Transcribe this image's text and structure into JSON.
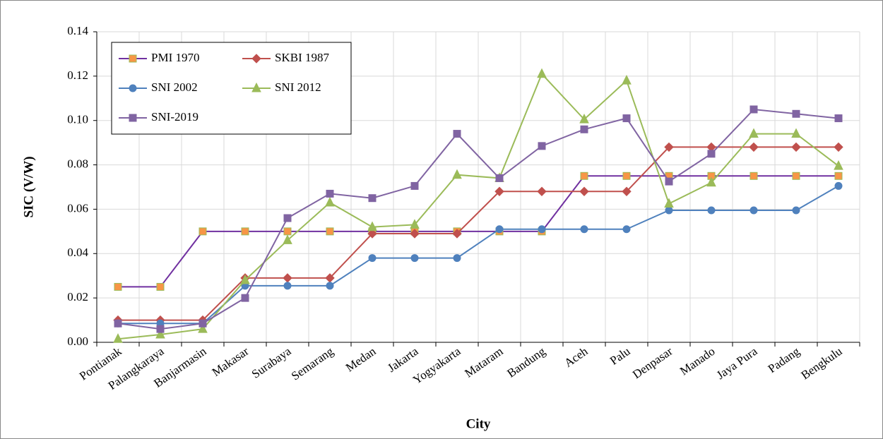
{
  "chart_data": {
    "type": "line",
    "x_label": "City",
    "y_label": "SIC (V/W)",
    "categories": [
      "Pontianak",
      "Palangkaraya",
      "Banjarmasin",
      "Makasar",
      "Surabaya",
      "Semarang",
      "Medan",
      "Jakarta",
      "Yogyakarta",
      "Mataram",
      "Bandung",
      "Aceh",
      "Palu",
      "Denpasar",
      "Manado",
      "Jaya Pura",
      "Padang",
      "Bengkulu"
    ],
    "series": [
      {
        "name": "PMI 1970",
        "color": "#7030a0",
        "marker": "square",
        "marker_color": "#f79646",
        "values": [
          0.025,
          0.025,
          0.05,
          0.05,
          0.05,
          0.05,
          0.05,
          0.05,
          0.05,
          0.05,
          0.05,
          0.075,
          0.075,
          0.075,
          0.075,
          0.075,
          0.075,
          0.075
        ]
      },
      {
        "name": "SKBI 1987",
        "color": "#c0504d",
        "marker": "diamond",
        "marker_color": "#c0504d",
        "values": [
          0.01,
          0.01,
          0.01,
          0.029,
          0.029,
          0.029,
          0.049,
          0.049,
          0.049,
          0.068,
          0.068,
          0.068,
          0.068,
          0.088,
          0.088,
          0.088,
          0.088,
          0.088
        ]
      },
      {
        "name": "SNI 2002",
        "color": "#4f81bd",
        "marker": "circle",
        "marker_color": "#4f81bd",
        "values": [
          0.0085,
          0.0085,
          0.0085,
          0.0255,
          0.0255,
          0.0255,
          0.038,
          0.038,
          0.038,
          0.051,
          0.051,
          0.051,
          0.051,
          0.0595,
          0.0595,
          0.0595,
          0.0595,
          0.0705
        ]
      },
      {
        "name": "SNI 2012",
        "color": "#9bbb59",
        "marker": "triangle",
        "marker_color": "#9bbb59",
        "values": [
          0.0015,
          0.0035,
          0.006,
          0.028,
          0.046,
          0.063,
          0.052,
          0.053,
          0.0755,
          0.074,
          0.121,
          0.1005,
          0.118,
          0.0625,
          0.072,
          0.094,
          0.094,
          0.0795
        ]
      },
      {
        "name": "SNI-2019",
        "color": "#8064a2",
        "marker": "square",
        "marker_color": "#8064a2",
        "values": [
          0.0085,
          0.006,
          0.0085,
          0.02,
          0.056,
          0.067,
          0.065,
          0.0705,
          0.094,
          0.074,
          0.0885,
          0.096,
          0.101,
          0.0725,
          0.085,
          0.105,
          0.103,
          0.101
        ]
      }
    ],
    "ylim": [
      0,
      0.14
    ],
    "yticks": [
      {
        "value": 0,
        "label": "0.00"
      },
      0.02,
      0.04,
      0.06,
      0.08,
      {
        "value": 0.1,
        "label": "0.10"
      },
      0.12,
      0.14
    ],
    "grid": true,
    "legend": "upper left"
  }
}
